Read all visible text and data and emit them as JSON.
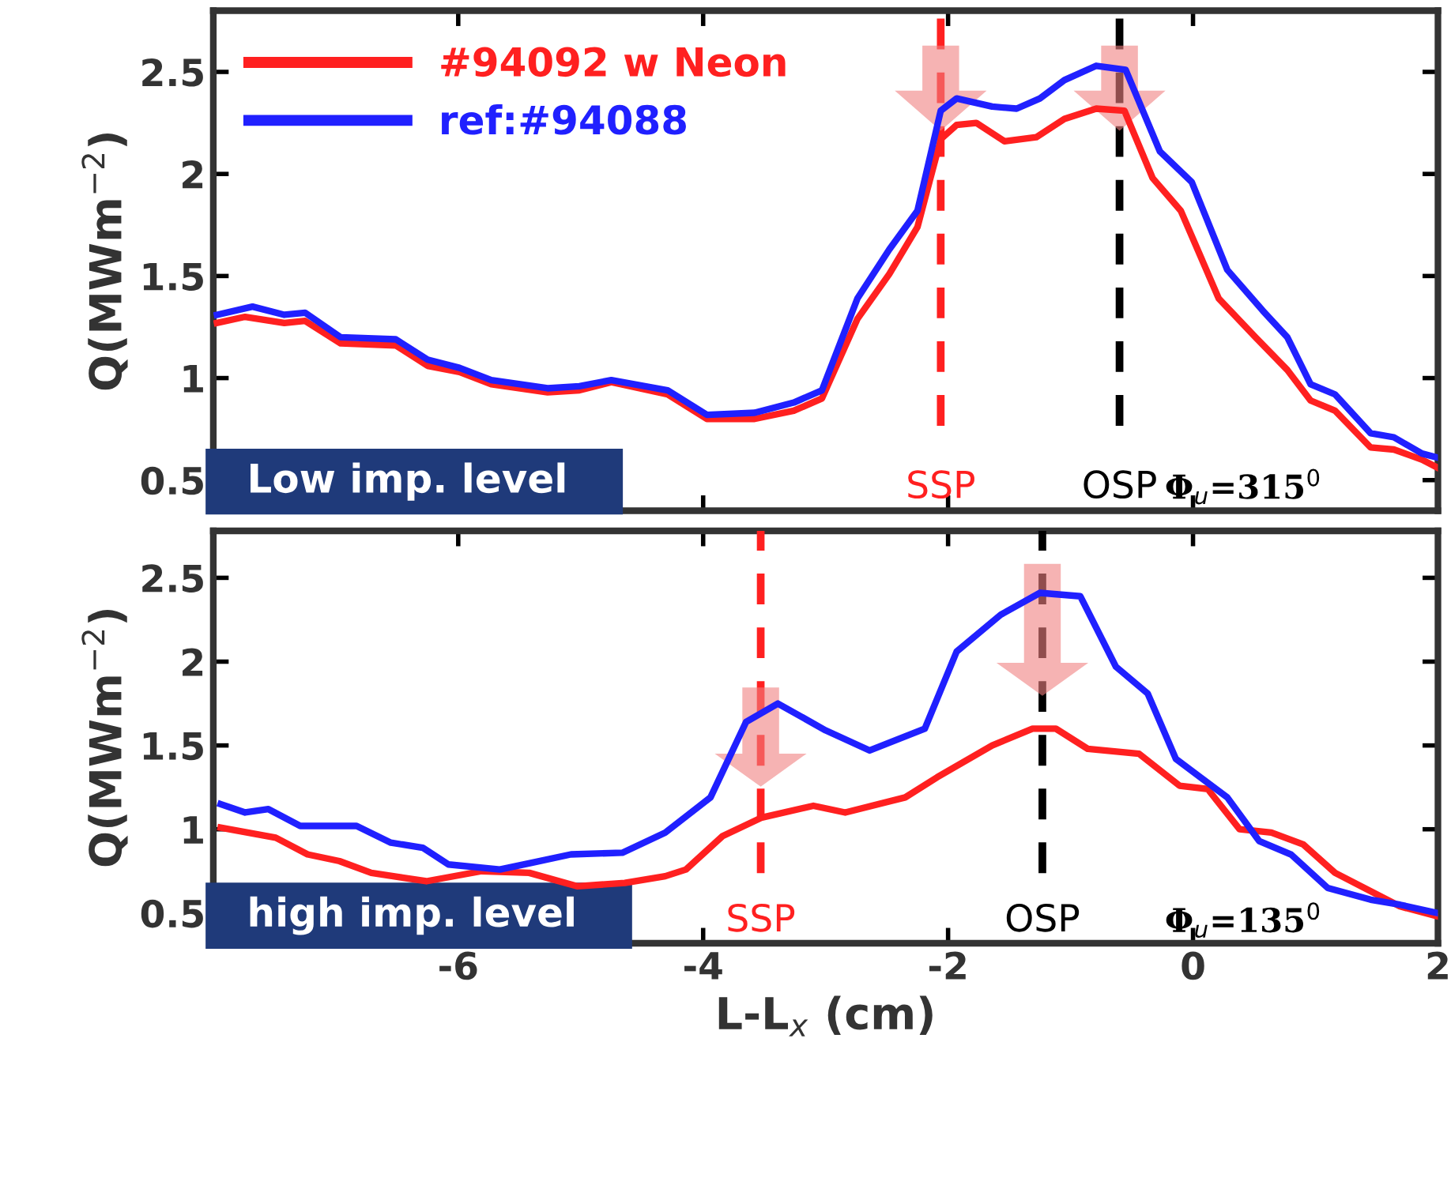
{
  "chart_data": [
    {
      "type": "line",
      "ylabel": "Q(MWm$^{−2}$)",
      "xlim": [
        -8,
        2
      ],
      "xticks": [
        -6,
        -4,
        -2,
        0,
        2
      ],
      "ylim": [
        0.35,
        2.8
      ],
      "yticks": [
        0.5,
        1,
        1.5,
        2,
        2.5
      ],
      "tick_labels": "y",
      "grid": false,
      "legend": "top left",
      "line_style": "solid",
      "marker": "none",
      "annotations": [
        "Low imp. level",
        "Φ$_{u}$=315$^{0}$"
      ],
      "ref_lines": [
        {
          "axis": "x",
          "value": -2.06,
          "label": "SSP",
          "color": "#ff2020",
          "line_style": "dashed"
        },
        {
          "axis": "x",
          "value": -0.6,
          "label": "OSP",
          "color": "#000000",
          "line_style": "dashed"
        }
      ],
      "series": [
        {
          "name": "#94092 w Neon",
          "color": "#ff2020",
          "x": [
            -7.97,
            -7.74,
            -7.42,
            -7.25,
            -6.96,
            -6.51,
            -6.25,
            -5.99,
            -5.73,
            -5.27,
            -5.01,
            -4.75,
            -4.29,
            -3.97,
            -3.58,
            -3.26,
            -3.03,
            -2.74,
            -2.48,
            -2.25,
            -2.06,
            -1.93,
            -1.77,
            -1.54,
            -1.28,
            -1.05,
            -0.79,
            -0.56,
            -0.33,
            -0.1,
            0.21,
            0.51,
            0.77,
            0.96,
            1.16,
            1.45,
            1.64,
            1.87,
            2.0
          ],
          "values": [
            1.27,
            1.3,
            1.27,
            1.28,
            1.17,
            1.16,
            1.06,
            1.03,
            0.97,
            0.93,
            0.94,
            0.98,
            0.92,
            0.8,
            0.8,
            0.84,
            0.9,
            1.29,
            1.51,
            1.74,
            2.17,
            2.24,
            2.25,
            2.16,
            2.18,
            2.27,
            2.32,
            2.31,
            1.98,
            1.82,
            1.39,
            1.2,
            1.04,
            0.89,
            0.84,
            0.66,
            0.65,
            0.6,
            0.56
          ]
        },
        {
          "name": "ref:#94088",
          "color": "#2020ff",
          "x": [
            -7.97,
            -7.68,
            -7.42,
            -7.25,
            -6.96,
            -6.51,
            -6.25,
            -5.99,
            -5.73,
            -5.27,
            -5.01,
            -4.75,
            -4.29,
            -3.97,
            -3.58,
            -3.26,
            -3.03,
            -2.74,
            -2.48,
            -2.25,
            -2.06,
            -1.93,
            -1.64,
            -1.44,
            -1.25,
            -1.05,
            -0.79,
            -0.55,
            -0.27,
            -0.01,
            0.28,
            0.57,
            0.77,
            0.96,
            1.16,
            1.45,
            1.64,
            1.87,
            2.0
          ],
          "values": [
            1.31,
            1.35,
            1.31,
            1.32,
            1.2,
            1.19,
            1.09,
            1.05,
            0.99,
            0.95,
            0.96,
            0.99,
            0.94,
            0.82,
            0.83,
            0.88,
            0.94,
            1.39,
            1.63,
            1.82,
            2.31,
            2.37,
            2.33,
            2.32,
            2.37,
            2.46,
            2.53,
            2.51,
            2.11,
            1.96,
            1.53,
            1.33,
            1.2,
            0.97,
            0.92,
            0.73,
            0.71,
            0.63,
            0.61
          ]
        }
      ]
    },
    {
      "type": "line",
      "xlabel": "L-L$_{x}$ (cm)",
      "ylabel": "Q(MWm$^{−2}$)",
      "xlim": [
        -8,
        2
      ],
      "xticks": [
        -6,
        -4,
        -2,
        0,
        2
      ],
      "ylim": [
        0.32,
        2.78
      ],
      "yticks": [
        0.5,
        1,
        1.5,
        2,
        2.5
      ],
      "grid": false,
      "line_style": "solid",
      "marker": "none",
      "annotations": [
        "high imp. level",
        "Φ$_{u}$=135$^{0}$"
      ],
      "ref_lines": [
        {
          "axis": "x",
          "value": -3.53,
          "label": "SSP",
          "color": "#ff2020",
          "line_style": "dashed"
        },
        {
          "axis": "x",
          "value": -1.23,
          "label": "OSP",
          "color": "#000000",
          "line_style": "dashed"
        }
      ],
      "series": [
        {
          "color": "#ff2020",
          "x": [
            -7.94,
            -7.49,
            -7.23,
            -6.97,
            -6.71,
            -6.26,
            -5.81,
            -5.42,
            -5.03,
            -4.64,
            -4.31,
            -4.14,
            -3.84,
            -3.52,
            -3.1,
            -2.84,
            -2.35,
            -2.09,
            -1.64,
            -1.31,
            -1.12,
            -0.86,
            -0.44,
            -0.11,
            0.12,
            0.38,
            0.64,
            0.9,
            1.16,
            1.69,
            2.0
          ],
          "values": [
            1.01,
            0.95,
            0.85,
            0.81,
            0.74,
            0.69,
            0.75,
            0.74,
            0.66,
            0.68,
            0.72,
            0.76,
            0.96,
            1.07,
            1.14,
            1.1,
            1.19,
            1.31,
            1.5,
            1.6,
            1.6,
            1.48,
            1.45,
            1.26,
            1.24,
            1.0,
            0.98,
            0.91,
            0.74,
            0.54,
            0.48
          ]
        },
        {
          "color": "#2020ff",
          "x": [
            -7.94,
            -7.74,
            -7.55,
            -7.29,
            -6.83,
            -6.55,
            -6.29,
            -6.08,
            -5.66,
            -5.4,
            -5.08,
            -4.66,
            -4.31,
            -3.94,
            -3.65,
            -3.39,
            -3.0,
            -2.64,
            -2.19,
            -1.93,
            -1.57,
            -1.25,
            -0.92,
            -0.63,
            -0.37,
            -0.14,
            0.28,
            0.54,
            0.8,
            1.1,
            1.45,
            1.69,
            2.0
          ],
          "values": [
            1.15,
            1.1,
            1.12,
            1.02,
            1.02,
            0.92,
            0.89,
            0.79,
            0.76,
            0.8,
            0.85,
            0.86,
            0.98,
            1.19,
            1.64,
            1.75,
            1.59,
            1.47,
            1.6,
            2.06,
            2.28,
            2.41,
            2.39,
            1.97,
            1.81,
            1.42,
            1.19,
            0.93,
            0.85,
            0.65,
            0.58,
            0.55,
            0.5
          ]
        }
      ]
    }
  ]
}
